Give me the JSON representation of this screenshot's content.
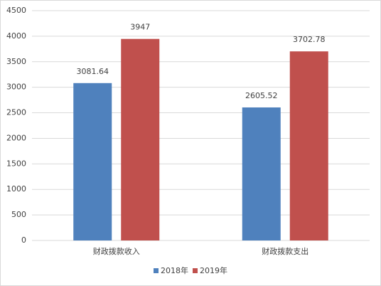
{
  "chart_data": {
    "type": "bar",
    "categories": [
      "财政拨款收入",
      "财政拨款支出"
    ],
    "series": [
      {
        "name": "2018年",
        "color": "#4f81bd",
        "values": [
          3081.64,
          2605.52
        ]
      },
      {
        "name": "2019年",
        "color": "#c0504d",
        "values": [
          3947,
          3702.78
        ]
      }
    ],
    "ylim": [
      0,
      4500
    ],
    "yticks": [
      0,
      500,
      1000,
      1500,
      2000,
      2500,
      3000,
      3500,
      4000,
      4500
    ],
    "grid": true,
    "legend": "bottom"
  }
}
